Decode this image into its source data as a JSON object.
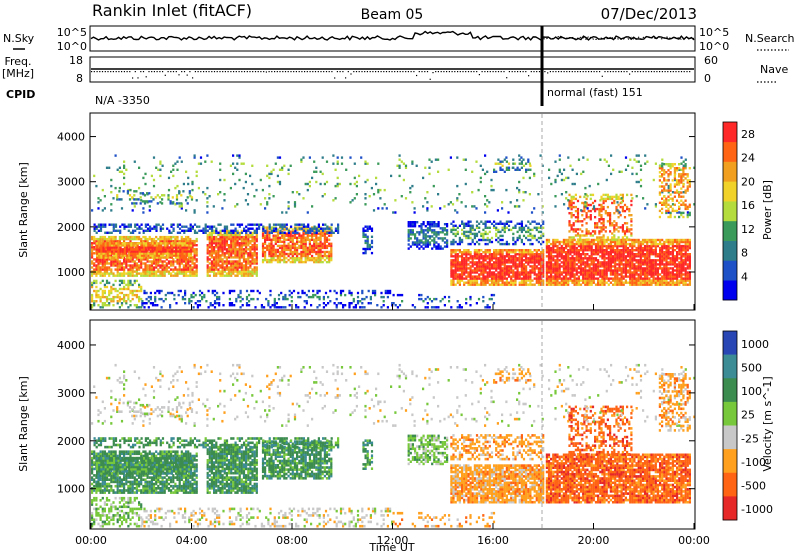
{
  "header": {
    "station": "Rankin Inlet (fitACF)",
    "beam": "Beam 05",
    "date": "07/Dec/2013"
  },
  "summary_panels": {
    "nsky_label": "N.Sky",
    "nsearch_label": "N.Search",
    "nsky_ticks": [
      "10^5",
      "10^0"
    ],
    "nsearch_ticks": [
      "10^5",
      "10^0"
    ],
    "freq_label_1": "Freq.",
    "freq_label_2": "[MHz]",
    "freq_ticks": [
      "18",
      "8"
    ],
    "nave_label": "Nave",
    "nave_ticks": [
      "60",
      "0"
    ],
    "cpid_label": "CPID",
    "cpid_left": "N/A -3350",
    "cpid_right": "normal (fast) 151"
  },
  "chart_data": [
    {
      "type": "heatmap",
      "title": "",
      "xlabel": "Time UT",
      "ylabel": "Slant Range [km]",
      "x_ticks": [
        "00:00",
        "04:00",
        "08:00",
        "12:00",
        "16:00",
        "20:00",
        "00:00"
      ],
      "x_range_hours": [
        0,
        24
      ],
      "y_ticks": [
        "1000",
        "2000",
        "3000",
        "4000"
      ],
      "ylim": [
        180,
        4500
      ],
      "colorbar": {
        "label": "Power [dB]",
        "ticks": [
          "4",
          "8",
          "12",
          "16",
          "20",
          "24",
          "28"
        ],
        "range": [
          0,
          30
        ],
        "colors": [
          "#0000ee",
          "#1e50c8",
          "#2e7d8a",
          "#3a9a5a",
          "#b4dc3c",
          "#f0d228",
          "#f0a01e",
          "#ff6414",
          "#ff2828"
        ]
      }
    },
    {
      "type": "heatmap",
      "title": "",
      "xlabel": "Time UT",
      "ylabel": "Slant Range [km]",
      "x_ticks": [
        "00:00",
        "04:00",
        "08:00",
        "12:00",
        "16:00",
        "20:00",
        "00:00"
      ],
      "x_range_hours": [
        0,
        24
      ],
      "y_ticks": [
        "1000",
        "2000",
        "3000",
        "4000"
      ],
      "ylim": [
        180,
        4500
      ],
      "colorbar": {
        "label": "Velocity [m s^-1]",
        "ticks": [
          "1000",
          "500",
          "100",
          "25",
          "-25",
          "-100",
          "-500",
          "-1000"
        ],
        "colors": [
          "#2846b4",
          "#3c8c96",
          "#3c8c50",
          "#78c83c",
          "#c8c8c8",
          "#ffa01e",
          "#ff6414",
          "#e62828"
        ]
      }
    }
  ]
}
